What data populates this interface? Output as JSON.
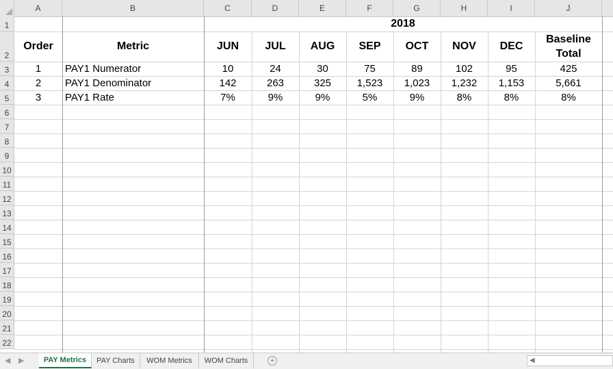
{
  "columns": [
    "A",
    "B",
    "C",
    "D",
    "E",
    "F",
    "G",
    "H",
    "I",
    "J"
  ],
  "rows": [
    "1",
    "2",
    "3",
    "4",
    "5",
    "6",
    "7",
    "8",
    "9",
    "10",
    "11",
    "12",
    "13",
    "14",
    "15",
    "16",
    "17",
    "18",
    "19",
    "20",
    "21",
    "22"
  ],
  "year_label": "2018",
  "headers": {
    "order": "Order",
    "metric": "Metric",
    "months": [
      "JUN",
      "JUL",
      "AUG",
      "SEP",
      "OCT",
      "NOV",
      "DEC"
    ],
    "baseline_line1": "Baseline",
    "baseline_line2": "Total"
  },
  "data_rows": [
    {
      "order": "1",
      "metric": "PAY1 Numerator",
      "values": [
        "10",
        "24",
        "30",
        "75",
        "89",
        "102",
        "95"
      ],
      "total": "425"
    },
    {
      "order": "2",
      "metric": "PAY1 Denominator",
      "values": [
        "142",
        "263",
        "325",
        "1,523",
        "1,023",
        "1,232",
        "1,153"
      ],
      "total": "5,661"
    },
    {
      "order": "3",
      "metric": "PAY1 Rate",
      "values": [
        "7%",
        "9%",
        "9%",
        "5%",
        "9%",
        "8%",
        "8%"
      ],
      "total": "8%"
    }
  ],
  "tabs": [
    "PAY Metrics",
    "PAY Charts",
    "WOM Metrics",
    "WOM Charts"
  ],
  "active_tab": "PAY Metrics",
  "add_sheet_symbol": "+",
  "accent_color": "#217346"
}
